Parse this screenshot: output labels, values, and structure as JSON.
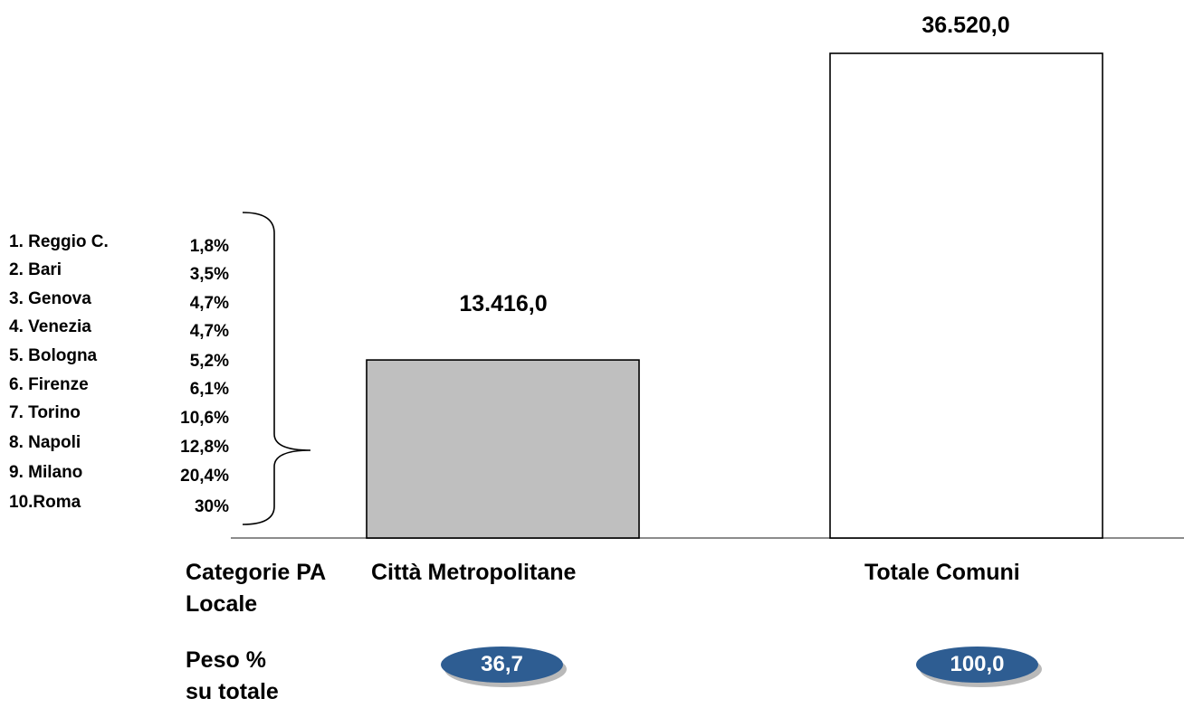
{
  "chart_data": {
    "type": "bar",
    "categories": [
      "Città Metropolitane",
      "Totale Comuni"
    ],
    "values": [
      13416.0,
      36520.0
    ],
    "value_labels": [
      "13.416,0",
      "36.520,0"
    ],
    "bar_colors": [
      "#bfbfbf",
      "#ffffff"
    ],
    "category_axis_label": "Categorie PA Locale",
    "weight_label": "Peso % su totale",
    "weights": [
      "36,7",
      "100,0"
    ],
    "breakdown": [
      {
        "name": "1.  Reggio C.",
        "pct": "1,8%"
      },
      {
        "name": "2.  Bari",
        "pct": "3,5%"
      },
      {
        "name": "3.  Genova",
        "pct": "4,7%"
      },
      {
        "name": "4.  Venezia",
        "pct": "4,7%"
      },
      {
        "name": "5.  Bologna",
        "pct": "5,2%"
      },
      {
        "name": "6.  Firenze",
        "pct": "6,1%"
      },
      {
        "name": "7.  Torino",
        "pct": "10,6%"
      },
      {
        "name": "8.  Napoli",
        "pct": "12,8%"
      },
      {
        "name": "9.  Milano",
        "pct": "20,4%"
      },
      {
        "name": "10.Roma",
        "pct": "30%"
      }
    ],
    "ylim": [
      0,
      36520
    ],
    "grid": false,
    "pill_color": "#2e5d92"
  }
}
